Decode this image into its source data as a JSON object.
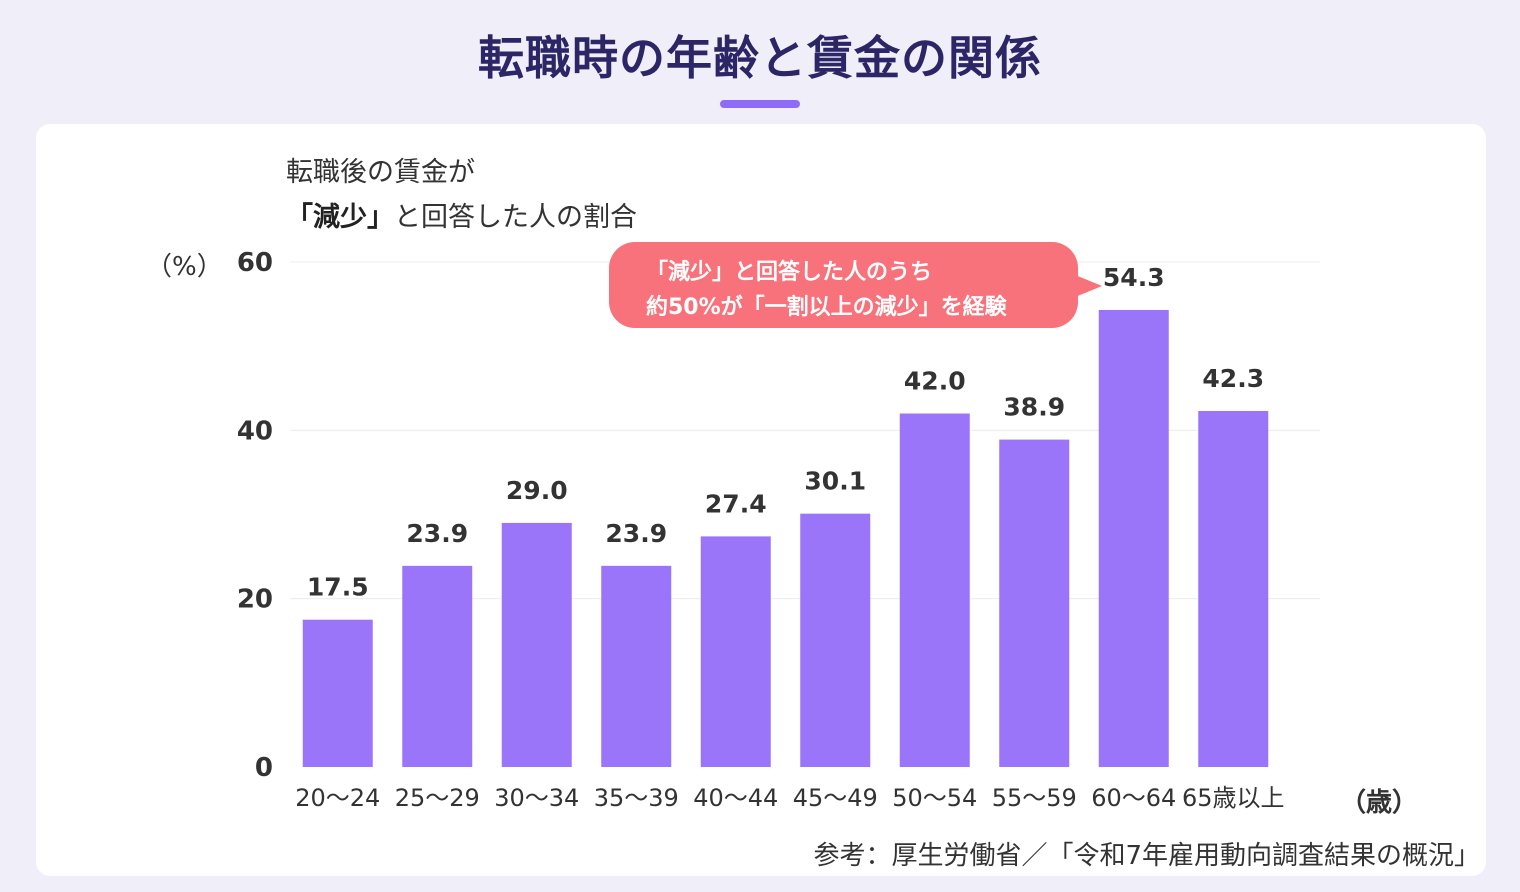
{
  "title": "転職時の年齢と賃金の関係",
  "subtitle_line1": "転職後の賃金が",
  "subtitle_line2_strong": "「減少」",
  "subtitle_line2_rest": "と回答した人の割合",
  "y_unit": "（%）",
  "x_unit": "（歳）",
  "callout": {
    "line1": "「減少」と回答した人のうち",
    "line2": "約50%が「一割以上の減少」を経験"
  },
  "source": "参考：厚生労働省／「令和7年雇用動向調査結果の概況」",
  "colors": {
    "bar": "#9a75fa",
    "title": "#2c2566",
    "callout": "#f7727a",
    "background": "#f0eff9"
  },
  "chart_data": {
    "type": "bar",
    "categories": [
      "20〜24",
      "25〜29",
      "30〜34",
      "35〜39",
      "40〜44",
      "45〜49",
      "50〜54",
      "55〜59",
      "60〜64",
      "65歳以上"
    ],
    "values": [
      17.5,
      23.9,
      29.0,
      23.9,
      27.4,
      30.1,
      42.0,
      38.9,
      54.3,
      42.3
    ],
    "value_labels": [
      "17.5",
      "23.9",
      "29.0",
      "23.9",
      "27.4",
      "30.1",
      "42.0",
      "38.9",
      "54.3",
      "42.3"
    ],
    "yticks": [
      0,
      20,
      40,
      60
    ],
    "ylim": [
      0,
      60
    ],
    "grid": true
  }
}
